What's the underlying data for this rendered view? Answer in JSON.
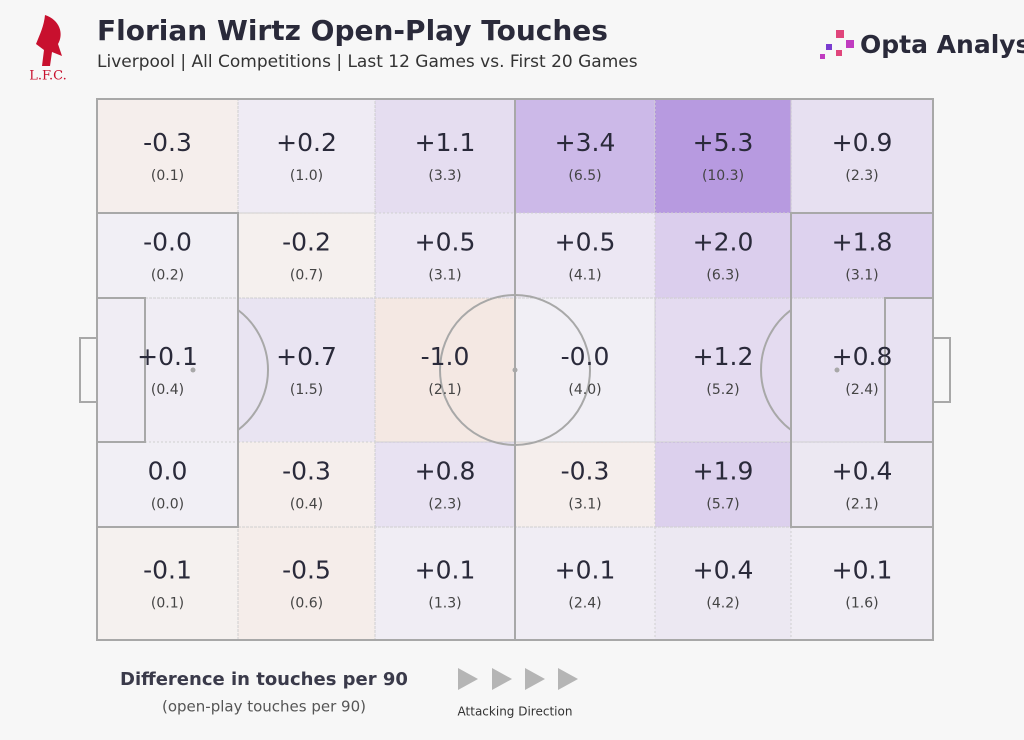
{
  "chart_data": {
    "type": "pitch-heatmap",
    "title": "Florian Wirtz Open-Play Touches",
    "subtitle": "Liverpool | All Competitions | Last 12 Games vs. First 20 Games",
    "club": "L.F.C.",
    "brand": "Opta Analyst",
    "legend_title": "Difference in touches per 90",
    "legend_subtitle": "(open-play touches per 90)",
    "direction_label": "Attacking Direction",
    "pos_color": "#9b72d6",
    "neg_color": "#e8a48c",
    "values": [
      [
        -0.3,
        0.2,
        1.1,
        3.4,
        5.3,
        0.9
      ],
      [
        0,
        -0.2,
        0.5,
        0.5,
        2.0,
        1.8
      ],
      [
        0.1,
        0.7,
        -1.0,
        0,
        1.2,
        0.8
      ],
      [
        0.0,
        -0.3,
        0.8,
        -0.3,
        1.9,
        0.4
      ],
      [
        -0.1,
        -0.5,
        0.1,
        0.1,
        0.4,
        0.1
      ]
    ],
    "value_labels": [
      [
        "-0.3",
        "+0.2",
        "+1.1",
        "+3.4",
        "+5.3",
        "+0.9"
      ],
      [
        "-0.0",
        "-0.2",
        "+0.5",
        "+0.5",
        "+2.0",
        "+1.8"
      ],
      [
        "+0.1",
        "+0.7",
        "-1.0",
        "-0.0",
        "+1.2",
        "+0.8"
      ],
      [
        "0.0",
        "-0.3",
        "+0.8",
        "-0.3",
        "+1.9",
        "+0.4"
      ],
      [
        "-0.1",
        "-0.5",
        "+0.1",
        "+0.1",
        "+0.4",
        "+0.1"
      ]
    ],
    "touches": [
      [
        {
          "value": 0.1,
          "label": "(0.1)"
        },
        {
          "value": 1.0,
          "label": "(1.0)"
        },
        {
          "value": 3.3,
          "label": "(3.3)"
        },
        {
          "value": 6.5,
          "label": "(6.5)"
        },
        {
          "value": 10.3,
          "label": "(10.3)"
        },
        {
          "value": 2.3,
          "label": "(2.3)"
        }
      ],
      [
        {
          "value": 0.2,
          "label": "(0.2)"
        },
        {
          "value": 0.7,
          "label": "(0.7)"
        },
        {
          "value": 3.1,
          "label": "(3.1)"
        },
        {
          "value": 4.1,
          "label": "(4.1)"
        },
        {
          "value": 6.3,
          "label": "(6.3)"
        },
        {
          "value": 3.1,
          "label": "(3.1)"
        }
      ],
      [
        {
          "value": 0.4,
          "label": "(0.4)"
        },
        {
          "value": 1.5,
          "label": "(1.5)"
        },
        {
          "value": 2.1,
          "label": "(2.1)"
        },
        {
          "value": 4.0,
          "label": "(4.0)"
        },
        {
          "value": 5.2,
          "label": "(5.2)"
        },
        {
          "value": 2.4,
          "label": "(2.4)"
        }
      ],
      [
        {
          "value": 0.0,
          "label": "(0.0)"
        },
        {
          "value": 0.4,
          "label": "(0.4)"
        },
        {
          "value": 2.3,
          "label": "(2.3)"
        },
        {
          "value": 3.1,
          "label": "(3.1)"
        },
        {
          "value": 5.7,
          "label": "(5.7)"
        },
        {
          "value": 2.1,
          "label": "(2.1)"
        }
      ],
      [
        {
          "value": 0.1,
          "label": "(0.1)"
        },
        {
          "value": 0.6,
          "label": "(0.6)"
        },
        {
          "value": 1.3,
          "label": "(1.3)"
        },
        {
          "value": 2.4,
          "label": "(2.4)"
        },
        {
          "value": 4.2,
          "label": "(4.2)"
        },
        {
          "value": 1.6,
          "label": "(1.6)"
        }
      ]
    ]
  }
}
